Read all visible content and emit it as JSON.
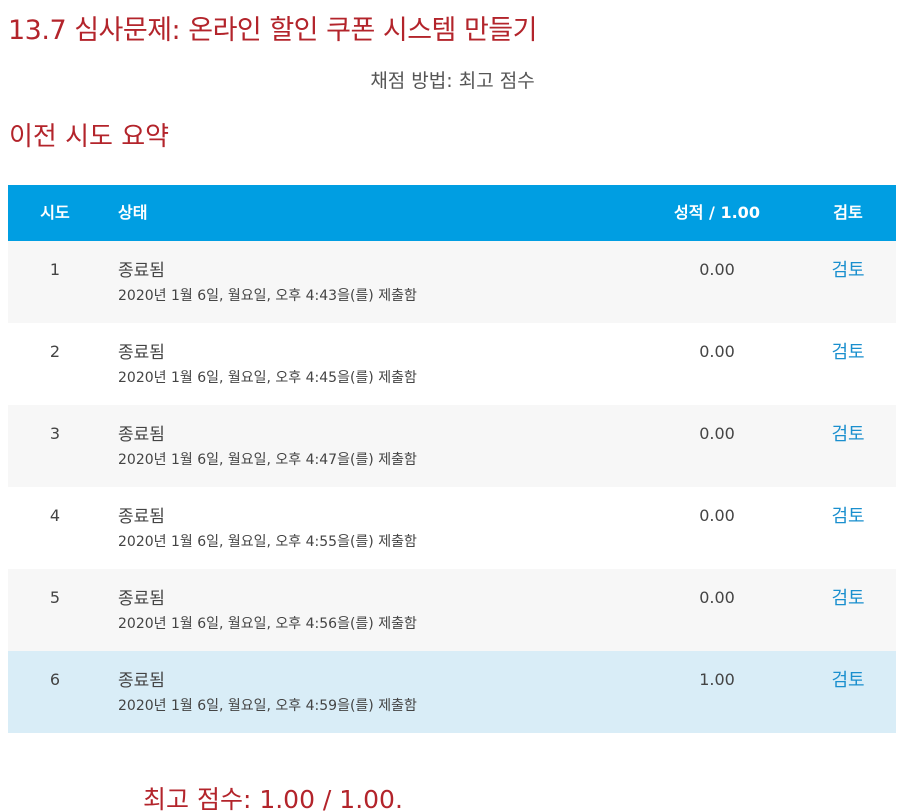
{
  "quiz": {
    "title": "13.7 심사문제: 온라인 할인 쿠폰 시스템 만들기",
    "grading_method": "채점 방법: 최고 점수"
  },
  "summary": {
    "heading": "이전 시도 요약"
  },
  "table": {
    "headers": {
      "attempt": "시도",
      "state": "상태",
      "grade": "성적 / 1.00",
      "review": "검토"
    },
    "rows": [
      {
        "attempt": "1",
        "state": "종료됨",
        "submitted": "2020년 1월 6일, 월요일, 오후 4:43을(를) 제출함",
        "grade": "0.00",
        "review": "검토"
      },
      {
        "attempt": "2",
        "state": "종료됨",
        "submitted": "2020년 1월 6일, 월요일, 오후 4:45을(를) 제출함",
        "grade": "0.00",
        "review": "검토"
      },
      {
        "attempt": "3",
        "state": "종료됨",
        "submitted": "2020년 1월 6일, 월요일, 오후 4:47을(를) 제출함",
        "grade": "0.00",
        "review": "검토"
      },
      {
        "attempt": "4",
        "state": "종료됨",
        "submitted": "2020년 1월 6일, 월요일, 오후 4:55을(를) 제출함",
        "grade": "0.00",
        "review": "검토"
      },
      {
        "attempt": "5",
        "state": "종료됨",
        "submitted": "2020년 1월 6일, 월요일, 오후 4:56을(를) 제출함",
        "grade": "0.00",
        "review": "검토"
      },
      {
        "attempt": "6",
        "state": "종료됨",
        "submitted": "2020년 1월 6일, 월요일, 오후 4:59을(를) 제출함",
        "grade": "1.00",
        "review": "검토"
      }
    ]
  },
  "best_score": "최고 점수: 1.00 / 1.00.",
  "colors": {
    "accent": "#b3242b",
    "header_bg": "#009ee2",
    "link": "#1a8fce",
    "best_row_bg": "#d9edf7"
  }
}
